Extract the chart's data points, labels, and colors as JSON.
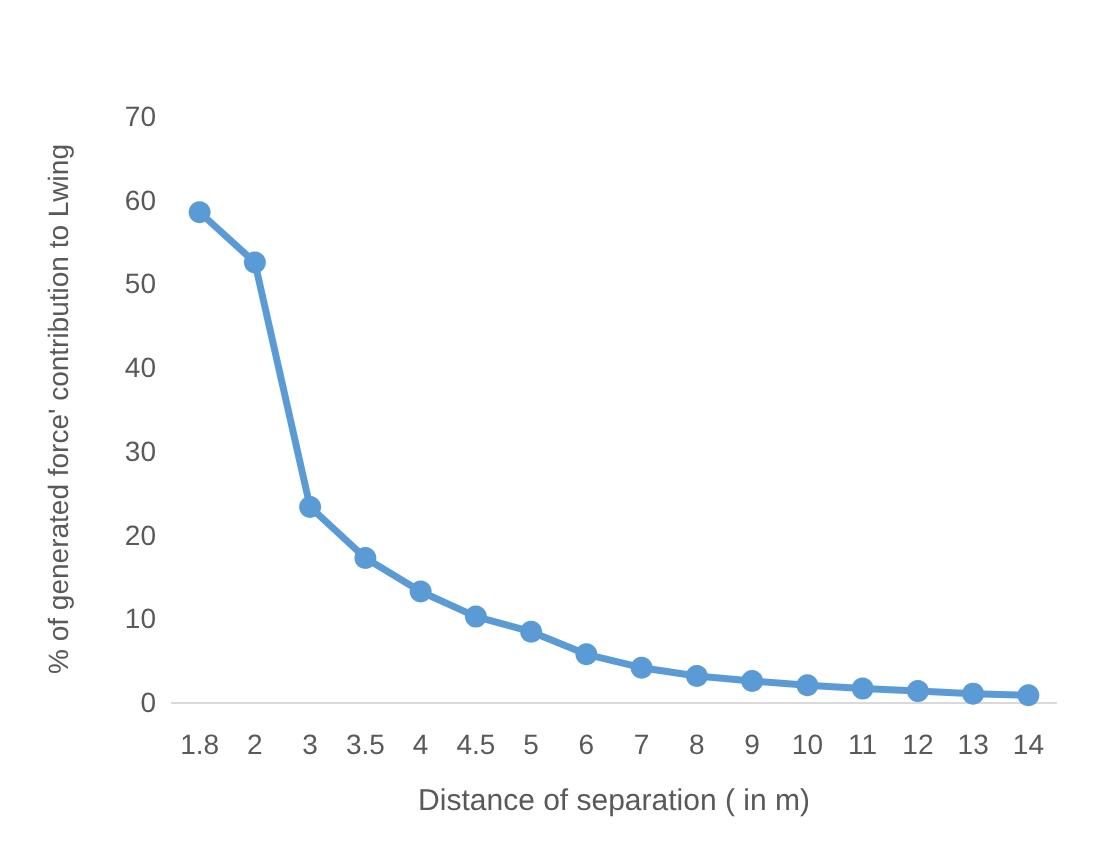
{
  "chart_data": {
    "type": "line",
    "xlabel": "Distance of separation ( in m)",
    "ylabel": "% of generated force' contribution to Lwing",
    "categories": [
      "1.8",
      "2",
      "3",
      "3.5",
      "4",
      "4.5",
      "5",
      "6",
      "7",
      "8",
      "9",
      "10",
      "11",
      "12",
      "13",
      "14"
    ],
    "series": [
      {
        "color": "#5b9bd5",
        "values": [
          58.5,
          52.5,
          23.3,
          17.2,
          13.2,
          10.2,
          8.4,
          5.7,
          4.1,
          3.1,
          2.5,
          2.0,
          1.6,
          1.3,
          1.0,
          0.8
        ]
      }
    ],
    "ylim": [
      0,
      70
    ],
    "yticks": [
      0,
      10,
      20,
      30,
      40,
      50,
      60,
      70
    ],
    "grid": false,
    "marker": "circle",
    "line_style": "solid"
  }
}
